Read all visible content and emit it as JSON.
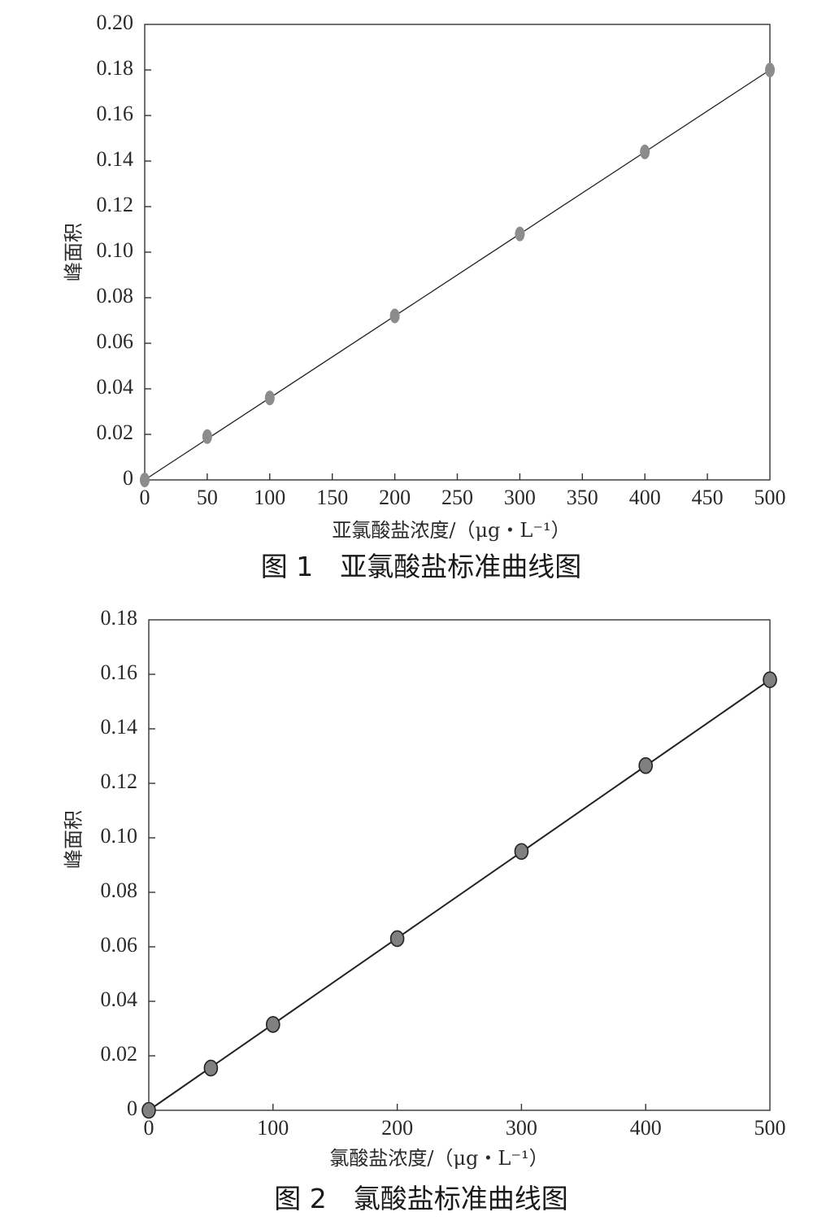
{
  "chart_data": [
    {
      "type": "scatter",
      "xlabel": "亚氯酸盐浓度/（μg・L⁻¹）",
      "ylabel": "峰面积",
      "caption": "图 1　亚氯酸盐标准曲线图",
      "xlim": [
        0,
        500
      ],
      "ylim": [
        0,
        0.2
      ],
      "x_ticks": [
        "0",
        "50",
        "100",
        "150",
        "200",
        "250",
        "300",
        "350",
        "400",
        "450",
        "500"
      ],
      "y_ticks": [
        "0",
        "0.02",
        "0.04",
        "0.06",
        "0.08",
        "0.10",
        "0.12",
        "0.14",
        "0.16",
        "0.18",
        "0.20"
      ],
      "series": [
        {
          "x": [
            0,
            50,
            100,
            200,
            300,
            400,
            500
          ],
          "y": [
            0.0,
            0.019,
            0.036,
            0.072,
            0.108,
            0.144,
            0.18
          ]
        }
      ],
      "fit_line": [
        [
          0,
          0.0
        ],
        [
          500,
          0.18
        ]
      ],
      "grid": false,
      "marker_color": "#8c8c8c"
    },
    {
      "type": "scatter",
      "xlabel": "氯酸盐浓度/（μg・L⁻¹）",
      "ylabel": "峰面积",
      "caption": "图 2　氯酸盐标准曲线图",
      "xlim": [
        0,
        500
      ],
      "ylim": [
        0,
        0.18
      ],
      "x_ticks": [
        "0",
        "100",
        "200",
        "300",
        "400",
        "500"
      ],
      "y_ticks": [
        "0",
        "0.02",
        "0.04",
        "0.06",
        "0.08",
        "0.10",
        "0.12",
        "0.14",
        "0.16",
        "0.18"
      ],
      "series": [
        {
          "x": [
            0,
            50,
            100,
            200,
            300,
            400,
            500
          ],
          "y": [
            0.0,
            0.0155,
            0.0315,
            0.063,
            0.095,
            0.1265,
            0.158
          ]
        }
      ],
      "fit_line": [
        [
          0,
          0.0
        ],
        [
          500,
          0.158
        ]
      ],
      "grid": false,
      "marker_color": "#808080"
    }
  ]
}
